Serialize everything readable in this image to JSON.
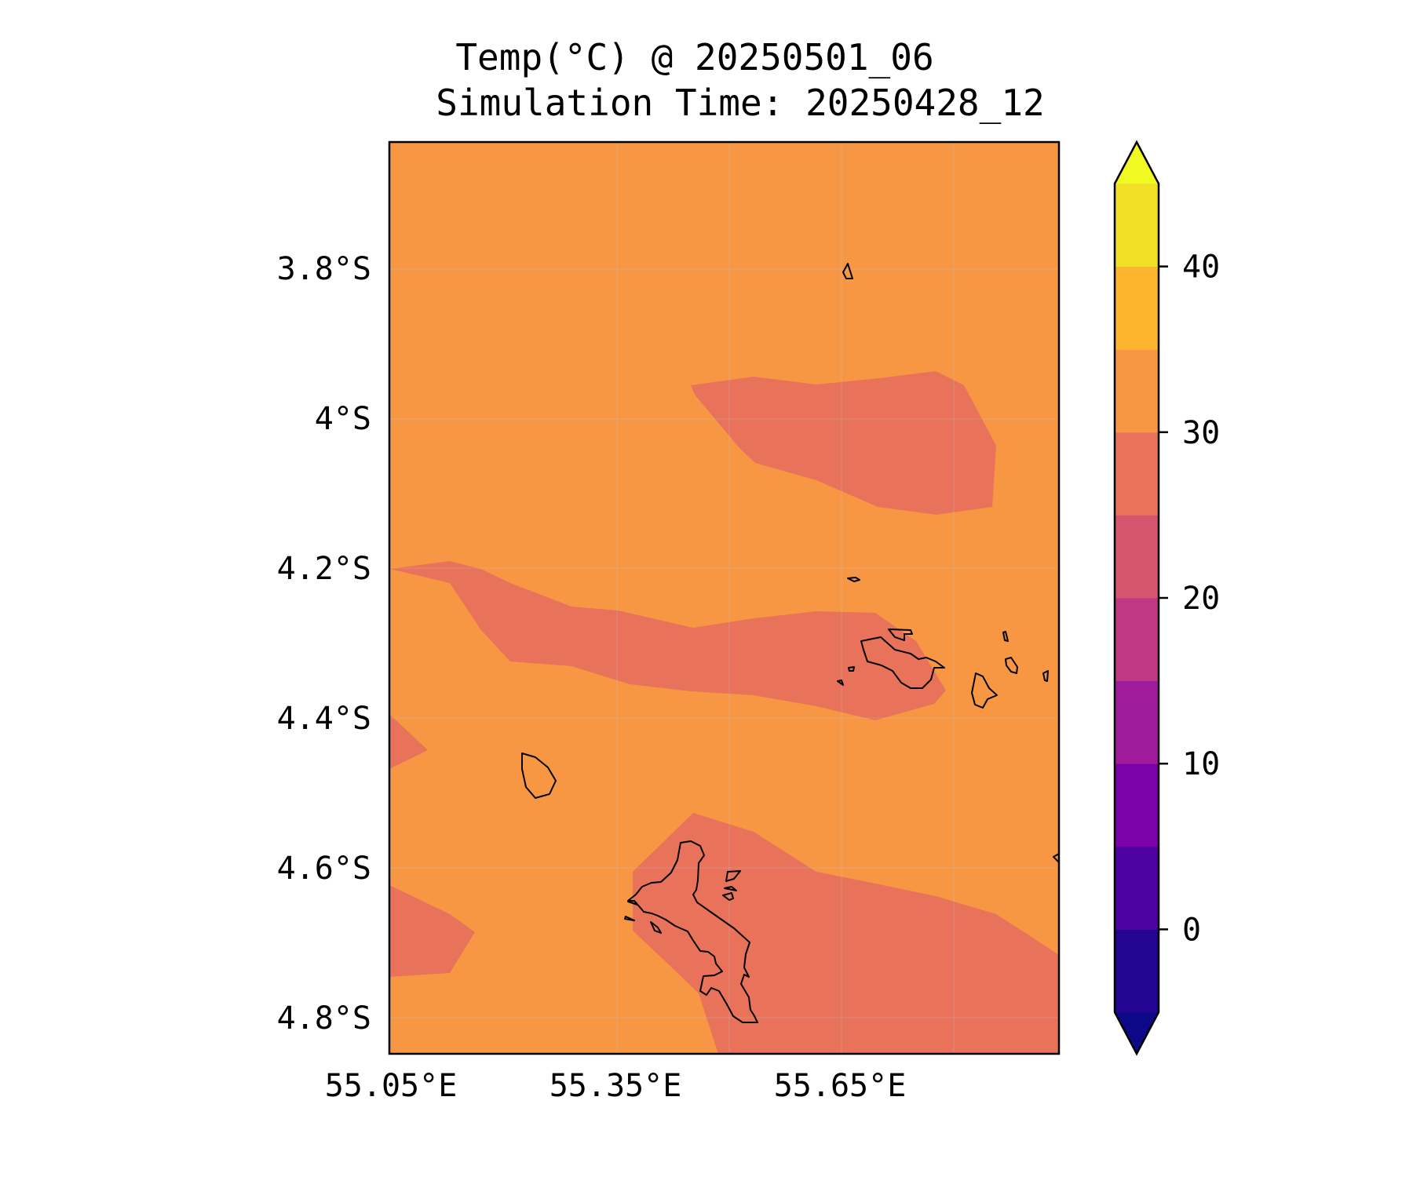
{
  "title": "Temp(°C) @ 20250501_06",
  "subtitle": "Simulation Time: 20250428_12",
  "map": {
    "type": "contour-filled",
    "variable": "Temp(°C)",
    "lon_ticks": [
      "55.05°E",
      "55.35°E",
      "55.65°E"
    ],
    "lat_ticks": [
      "3.8°S",
      "4°S",
      "4.2°S",
      "4.4°S",
      "4.6°S",
      "4.8°S"
    ],
    "background_band": "30–35",
    "highlight_band": "25–30",
    "grid": true,
    "coastlines": true
  },
  "colorbar": {
    "range": [
      -5,
      45
    ],
    "extend": "both",
    "step": 5,
    "ticks": [
      "0",
      "10",
      "20",
      "30",
      "40"
    ],
    "colors": [
      "#0d0887",
      "#220690",
      "#46039f",
      "#7201a8",
      "#9c179e",
      "#bd3786",
      "#d8576b",
      "#ed7953",
      "#f89540",
      "#fdb42f",
      "#f0f921"
    ],
    "band_colors": [
      "#240591",
      "#4f02a2",
      "#7a02a8",
      "#a01a9c",
      "#be3884",
      "#d5546e",
      "#e8735a",
      "#f79744",
      "#fdb52f",
      "#f2e027"
    ]
  }
}
